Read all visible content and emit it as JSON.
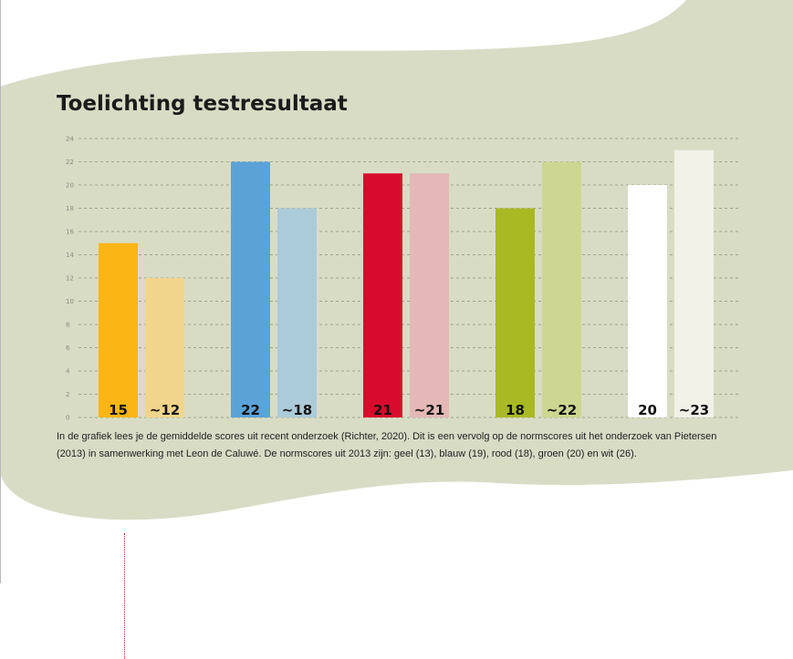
{
  "title": "Toelichting testresultaat",
  "caption": "In de grafiek lees je de gemiddelde scores uit recent onderzoek (Richter, 2020). Dit is een vervolg op de normscores uit het onderzoek van Pietersen (2013) in samenwerking met Leon de Caluwé. De normscores uit 2013 zijn: geel (13), blauw (19), rood (18), groen (20) en wit (26).",
  "chart_data": {
    "type": "bar",
    "title": "Toelichting testresultaat",
    "xlabel": "",
    "ylabel": "",
    "ylim": [
      0,
      24
    ],
    "yticks": [
      0,
      2,
      4,
      6,
      8,
      10,
      12,
      14,
      16,
      18,
      20,
      22,
      24
    ],
    "grid": true,
    "legend": "none",
    "groups": [
      {
        "colors": [
          "#fbb616",
          "#f1d58c"
        ],
        "bars": [
          {
            "value": 15,
            "label": "15"
          },
          {
            "value": 12,
            "label": "~12"
          }
        ]
      },
      {
        "colors": [
          "#5ba3d7",
          "#abcbd9"
        ],
        "bars": [
          {
            "value": 22,
            "label": "22"
          },
          {
            "value": 18,
            "label": "~18"
          }
        ]
      },
      {
        "colors": [
          "#d90b2d",
          "#e4b8b6"
        ],
        "bars": [
          {
            "value": 21,
            "label": "21"
          },
          {
            "value": 21,
            "label": "~21"
          }
        ]
      },
      {
        "colors": [
          "#a9b924",
          "#cdd791"
        ],
        "bars": [
          {
            "value": 18,
            "label": "18"
          },
          {
            "value": 22,
            "label": "~22"
          }
        ]
      },
      {
        "colors": [
          "#ffffff",
          "#f1f1e8"
        ],
        "bars": [
          {
            "value": 20,
            "label": "20"
          },
          {
            "value": 23,
            "label": "~23"
          }
        ]
      }
    ]
  }
}
